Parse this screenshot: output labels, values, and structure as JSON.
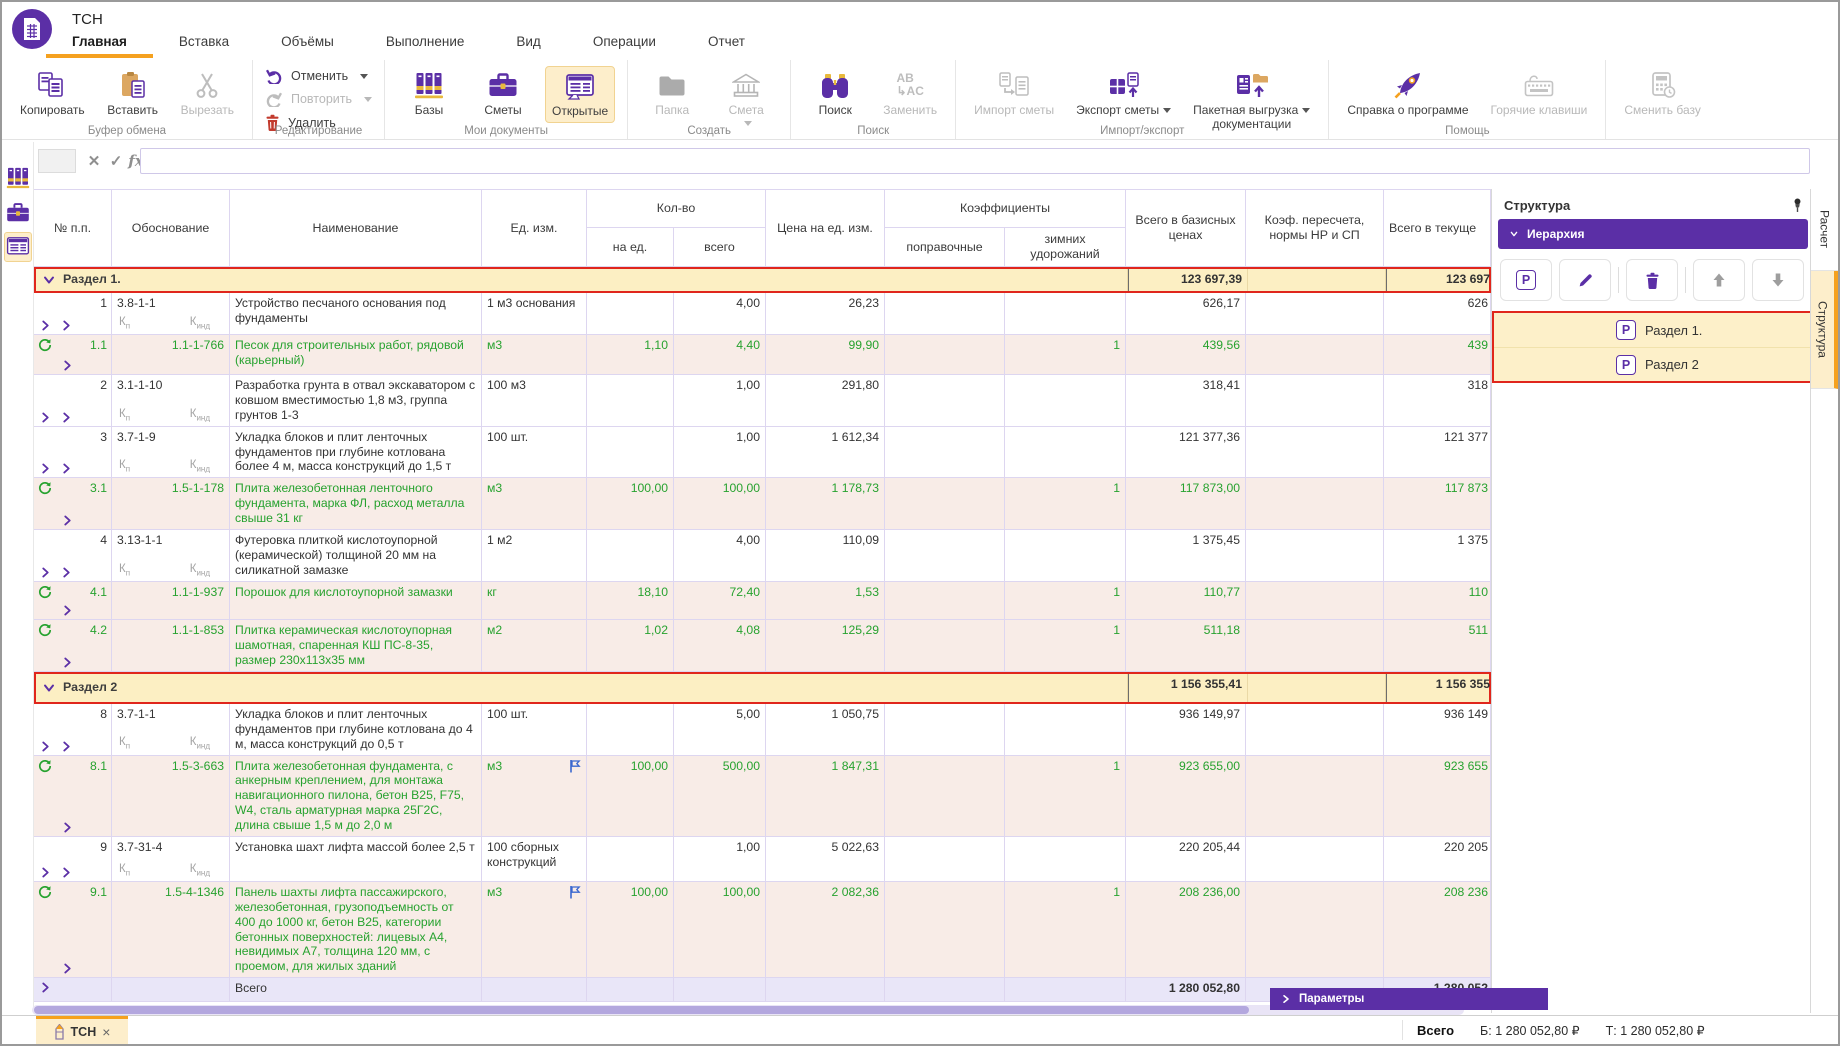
{
  "window": {
    "title": "ТСН"
  },
  "menu": {
    "tabs": [
      "Главная",
      "Вставка",
      "Объёмы",
      "Выполнение",
      "Вид",
      "Операции",
      "Отчет"
    ]
  },
  "ribbon": {
    "copy": "Копировать",
    "paste": "Вставить",
    "cut": "Вырезать",
    "undo": "Отменить",
    "redo": "Повторить",
    "delete": "Удалить",
    "bases": "Базы",
    "estimates": "Сметы",
    "opened": "Открытые",
    "folder": "Папка",
    "estimate": "Смета",
    "search": "Поиск",
    "replace": "Заменить",
    "import": "Импорт сметы",
    "export": "Экспорт сметы",
    "batch_line1": "Пакетная выгрузка",
    "batch_line2": "документации",
    "help": "Справка о программе",
    "hotkeys": "Горячие клавиши",
    "change_base": "Сменить базу",
    "replace_icon_top": "AB",
    "replace_icon_bottom": "AC",
    "groups": {
      "clipboard": "Буфер обмена",
      "editing": "Редактирование",
      "mydocs": "Мои документы",
      "create": "Создать",
      "search": "Поиск",
      "impexp": "Импорт/экспорт",
      "help": "Помощь"
    }
  },
  "formula": {
    "name_value": "",
    "value": "",
    "fx_label": "fx"
  },
  "table": {
    "columns": {
      "num": "№ п.п.",
      "basis": "Обоснование",
      "name": "Наименование",
      "unit": "Ед. изм.",
      "qty_group": "Кол-во",
      "qty_unit": "на ед.",
      "qty_total": "всего",
      "price": "Цена на ед. изм.",
      "coef_group": "Коэффициенты",
      "coef_corr": "поправочные",
      "coef_winter": "зимних удорожаний",
      "total_base": "Всего в базисных ценах",
      "coef_recalc": "Коэф. пересчета, нормы НР и СП",
      "total_cur": "Всего в текуще"
    },
    "k_labels": {
      "kp_base": "К",
      "kp_sub": "п",
      "kind_base": "К",
      "kind_sub": "инд"
    },
    "rows": [
      {
        "type": "section",
        "label": "Раздел 1.",
        "total_base": "123 697,39",
        "total_cur": "123 697"
      },
      {
        "type": "work",
        "num": "1",
        "code": "3.8-1-1",
        "name": "Устройство песчаного основания под фундаменты",
        "unit": "1 м3 основания",
        "qty_total": "4,00",
        "price": "26,23",
        "total_base": "626,17",
        "total_cur": "626"
      },
      {
        "type": "resource",
        "num": "1.1",
        "code": "1.1-1-766",
        "name": "Песок для строительных работ, рядовой (карьерный)",
        "unit": "м3",
        "qty_unit": "1,10",
        "qty_total": "4,40",
        "price": "99,90",
        "coef_winter": "1",
        "total_base": "439,56",
        "total_cur": "439"
      },
      {
        "type": "work",
        "num": "2",
        "code": "3.1-1-10",
        "name": "Разработка грунта в отвал экскаватором с ковшом вместимостью 1,8 м3, группа грунтов 1-3",
        "unit": "100 м3",
        "qty_total": "1,00",
        "price": "291,80",
        "total_base": "318,41",
        "total_cur": "318"
      },
      {
        "type": "work",
        "num": "3",
        "code": "3.7-1-9",
        "name": "Укладка блоков и плит ленточных фундаментов при глубине котлована более 4 м, масса конструкций до 1,5 т",
        "unit": "100 шт.",
        "qty_total": "1,00",
        "price": "1 612,34",
        "total_base": "121 377,36",
        "total_cur": "121 377"
      },
      {
        "type": "resource",
        "num": "3.1",
        "code": "1.5-1-178",
        "name": "Плита железобетонная ленточного фундамента, марка ФЛ, расход металла свыше 31 кг",
        "unit": "м3",
        "qty_unit": "100,00",
        "qty_total": "100,00",
        "price": "1 178,73",
        "coef_winter": "1",
        "total_base": "117 873,00",
        "total_cur": "117 873"
      },
      {
        "type": "work",
        "num": "4",
        "code": "3.13-1-1",
        "name": "Футеровка плиткой кислотоупорной (керамической) толщиной 20 мм на силикатной замазке",
        "unit": "1 м2",
        "qty_total": "4,00",
        "price": "110,09",
        "total_base": "1 375,45",
        "total_cur": "1 375"
      },
      {
        "type": "resource",
        "num": "4.1",
        "code": "1.1-1-937",
        "name": "Порошок для кислотоупорной замазки",
        "unit": "кг",
        "qty_unit": "18,10",
        "qty_total": "72,40",
        "price": "1,53",
        "coef_winter": "1",
        "total_base": "110,77",
        "total_cur": "110"
      },
      {
        "type": "resource",
        "num": "4.2",
        "code": "1.1-1-853",
        "name": "Плитка керамическая кислотоупорная шамотная, спаренная КШ ПС-8-35, размер 230x113x35 мм",
        "unit": "м2",
        "qty_unit": "1,02",
        "qty_total": "4,08",
        "price": "125,29",
        "coef_winter": "1",
        "total_base": "511,18",
        "total_cur": "511"
      },
      {
        "type": "section",
        "label": "Раздел 2",
        "total_base": "1 156 355,41",
        "total_cur": "1 156 355"
      },
      {
        "type": "work",
        "num": "8",
        "code": "3.7-1-1",
        "name": "Укладка блоков и плит ленточных фундаментов при глубине котлована до 4 м, масса конструкций до 0,5 т",
        "unit": "100 шт.",
        "qty_total": "5,00",
        "price": "1 050,75",
        "total_base": "936 149,97",
        "total_cur": "936 149"
      },
      {
        "type": "resource",
        "flag": true,
        "num": "8.1",
        "code": "1.5-3-663",
        "name": "Плита железобетонная фундамента, с анкерным креплением, для монтажа навигационного пилона, бетон B25, F75, W4, сталь арматурная марка 25Г2С, длина свыше 1,5 м до 2,0 м",
        "unit": "м3",
        "qty_unit": "100,00",
        "qty_total": "500,00",
        "price": "1 847,31",
        "coef_winter": "1",
        "total_base": "923 655,00",
        "total_cur": "923 655"
      },
      {
        "type": "work",
        "num": "9",
        "code": "3.7-31-4",
        "name": "Установка шахт лифта массой более 2,5 т",
        "unit": "100 сборных конструкций",
        "qty_total": "1,00",
        "price": "5 022,63",
        "total_base": "220 205,44",
        "total_cur": "220 205"
      },
      {
        "type": "resource",
        "flag": true,
        "num": "9.1",
        "code": "1.5-4-1346",
        "name": "Панель шахты лифта пассажирского, железобетонная, грузоподъемность от 400 до 1000 кг, бетон B25, категории бетонных поверхностей: лицевых A4, невидимых A7, толщина 120 мм, с проемом, для жилых зданий",
        "unit": "м3",
        "qty_unit": "100,00",
        "qty_total": "100,00",
        "price": "2 082,36",
        "coef_winter": "1",
        "total_base": "208 236,00",
        "total_cur": "208 236"
      },
      {
        "type": "total",
        "name": "Всего",
        "total_base": "1 280 052,80",
        "total_cur": "1 280 052"
      }
    ]
  },
  "structure_panel": {
    "title": "Структура",
    "hierarchy": "Иерархия",
    "items": [
      {
        "label": "Раздел 1."
      },
      {
        "label": "Раздел 2"
      }
    ],
    "params": "Параметры"
  },
  "side_tabs": [
    {
      "label": "Расчет"
    },
    {
      "label": "Структура",
      "active": true
    }
  ],
  "bottom": {
    "tab_label": "ТСН",
    "close": "×",
    "total_label": "Всего",
    "base_total": "Б: 1 280 052,80 ₽",
    "current_total": "Т: 1 280 052,80 ₽"
  },
  "colors": {
    "accent_purple": "#5b2fa6",
    "accent_orange": "#f5a11f",
    "section_bg": "#fcefc3",
    "selection_border": "#e0261c",
    "resource_text": "#27a22f",
    "resource_bg": "#f8ece7",
    "total_row_bg": "#e9e6f8",
    "grid_line": "#ddd6f0"
  }
}
